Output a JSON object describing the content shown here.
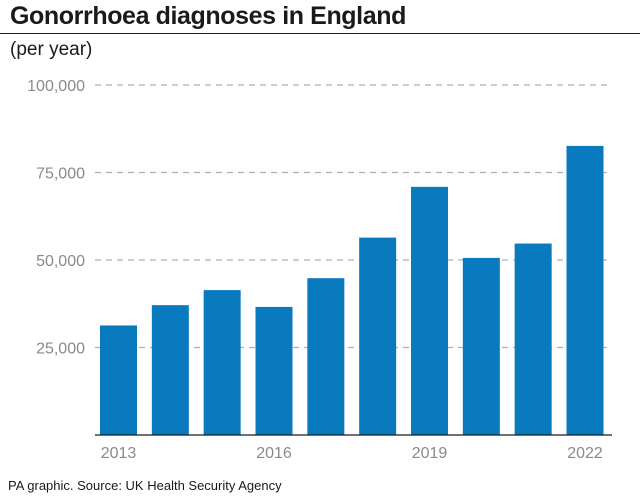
{
  "chart_data": {
    "type": "bar",
    "title": "Gonorrhoea diagnoses in England",
    "subtitle": "(per year)",
    "xlabel": "",
    "ylabel": "",
    "categories": [
      "2013",
      "2014",
      "2015",
      "2016",
      "2017",
      "2018",
      "2019",
      "2020",
      "2021",
      "2022"
    ],
    "x_tick_labels": [
      "2013",
      "",
      "",
      "2016",
      "",
      "",
      "2019",
      "",
      "",
      "2022"
    ],
    "values": [
      31300,
      37100,
      41400,
      36600,
      44800,
      56400,
      70900,
      50600,
      54700,
      82600
    ],
    "ylim": [
      0,
      100000
    ],
    "y_ticks": [
      25000,
      50000,
      75000,
      100000
    ],
    "y_tick_labels": [
      "25,000",
      "50,000",
      "75,000",
      "100,000"
    ],
    "grid": "horizontal dashed",
    "colors": {
      "bar": "#0a7abf",
      "grid": "#b0b0b0",
      "tick_text": "#8a8a8a",
      "axis": "#1a1a1a"
    }
  },
  "source": "PA graphic. Source: UK Health Security Agency"
}
